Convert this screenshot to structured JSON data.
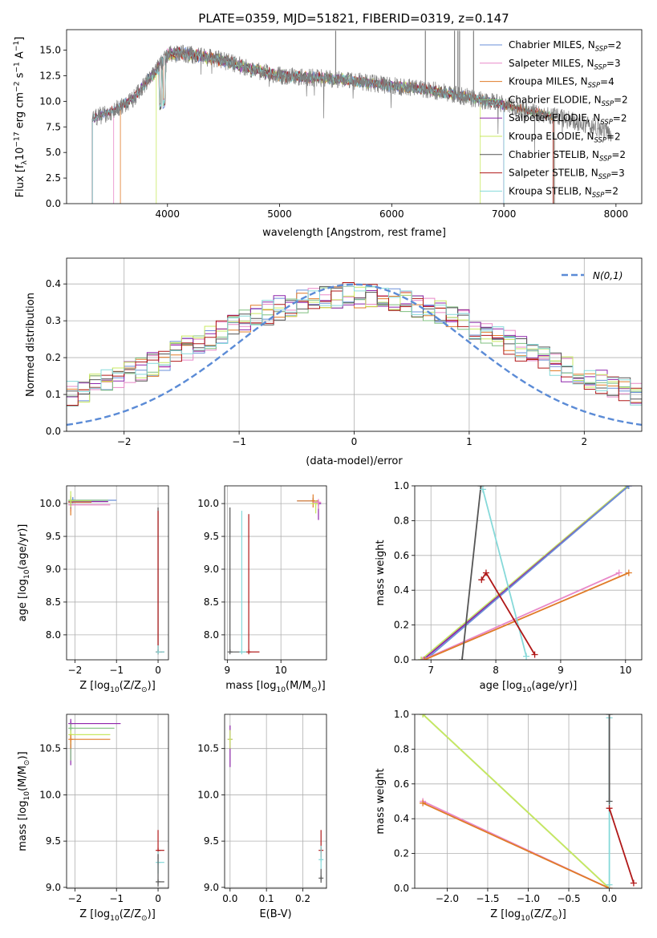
{
  "figure": {
    "title": "PLATE=0359, MJD=51821, FIBERID=0319, z=0.147",
    "colors": {
      "Chabrier MILES": "#6a8fd8",
      "Salpeter MILES": "#e888c8",
      "Kroupa MILES": "#e07b28",
      "Chabrier ELODIE": "#7fbf7f",
      "Salpeter ELODIE": "#8e24aa",
      "Kroupa ELODIE": "#c8e860",
      "Chabrier STELIB": "#555555",
      "Salpeter STELIB": "#b01818",
      "Kroupa STELIB": "#86d9d9"
    }
  },
  "chart_data": [
    {
      "id": "spectrum",
      "type": "line",
      "xlabel": "wavelength [Angstrom, rest frame]",
      "ylabel": "Flux [f",
      "ylabel_sub": "λ",
      "ylabel_rest": "10",
      "ylabel_exp1": "−17",
      "ylabel_mid": " erg cm",
      "ylabel_exp2": "−2",
      "ylabel_mid2": " s",
      "ylabel_exp3": "−1",
      "ylabel_mid3": " A",
      "ylabel_exp4": "−1",
      "ylabel_end": "]",
      "xlim": [
        3100,
        8230
      ],
      "ylim": [
        0,
        17
      ],
      "xticks": [
        "4000",
        "5000",
        "6000",
        "7000",
        "8000"
      ],
      "yticks": [
        "0.0",
        "2.5",
        "5.0",
        "7.5",
        "10.0",
        "12.5",
        "15.0"
      ],
      "legend_position": "right",
      "legend": [
        {
          "name": "Chabrier MILES",
          "nssp": "2"
        },
        {
          "name": "Salpeter MILES",
          "nssp": "3"
        },
        {
          "name": "Kroupa MILES",
          "nssp": "4"
        },
        {
          "name": "Chabrier ELODIE",
          "nssp": "2"
        },
        {
          "name": "Salpeter ELODIE",
          "nssp": "2"
        },
        {
          "name": "Kroupa ELODIE",
          "nssp": "2"
        },
        {
          "name": "Chabrier STELIB",
          "nssp": "2"
        },
        {
          "name": "Salpeter STELIB",
          "nssp": "3"
        },
        {
          "name": "Kroupa STELIB",
          "nssp": "2"
        }
      ],
      "legend_nssp_prefix": "N",
      "legend_nssp_sub": "SSP",
      "observed_series": {
        "color": "#7f7f7f",
        "x": [
          3330,
          3500,
          3700,
          3900,
          4000,
          4100,
          4300,
          4500,
          4700,
          5000,
          5300,
          5600,
          6000,
          6300,
          6600,
          6800,
          7000,
          7200,
          7500,
          7800,
          7960
        ],
        "y": [
          8.3,
          9.0,
          10.3,
          13.0,
          14.5,
          14.7,
          14.4,
          14.0,
          13.3,
          12.5,
          12.3,
          12.1,
          11.5,
          11.2,
          10.6,
          10.1,
          9.7,
          9.1,
          8.4,
          7.5,
          6.8
        ]
      },
      "model_start_x": [
        3330,
        3520,
        3580,
        3330,
        3330,
        3900,
        3330,
        3330,
        3330
      ],
      "model_end_x": [
        7000,
        7000,
        7450,
        7440,
        7000,
        6790,
        7450,
        7440,
        7000
      ]
    },
    {
      "id": "residuals",
      "type": "line",
      "xlabel": "(data-model)/error",
      "ylabel": "Normed distribution",
      "xlim": [
        -2.5,
        2.5
      ],
      "ylim": [
        0,
        0.47
      ],
      "xticks": [
        -2,
        -1,
        0,
        1,
        2
      ],
      "xtick_labels": [
        "−2",
        "−1",
        "0",
        "1",
        "2"
      ],
      "yticks": [
        0,
        0.1,
        0.2,
        0.3,
        0.4
      ],
      "ytick_labels": [
        "0.0",
        "0.1",
        "0.2",
        "0.3",
        "0.4"
      ],
      "gaussian": {
        "label": "N(0,1)",
        "mu": 0,
        "sigma": 1,
        "color": "#5b8bd6"
      },
      "bin_width": 0.1,
      "histogram_bins": 50
    },
    {
      "id": "age-vs-z",
      "type": "scatter",
      "xlabel": "Z [log",
      "xlabel_sub": "10",
      "xlabel_rest": "(Z/Z",
      "xlabel_sun": "⊙",
      "xlabel_end": ")]",
      "ylabel": "age  [log",
      "ylabel_sub": "10",
      "ylabel_rest": "(age/yr)]",
      "xlim": [
        -2.2,
        0.25
      ],
      "ylim": [
        7.62,
        10.27
      ],
      "xticks": [
        -2,
        -1,
        0
      ],
      "xtick_labels": [
        "−2",
        "−1",
        "0"
      ],
      "yticks": [
        8.0,
        8.5,
        9.0,
        9.5,
        10.0
      ],
      "ytick_labels": [
        "8.0",
        "8.5",
        "9.0",
        "9.5",
        "10.0"
      ],
      "points": [
        {
          "model": "Chabrier MILES",
          "x": -2.05,
          "y": 10.05,
          "xerr": [
            0.0,
            1.05
          ],
          "yerr": [
            0.05,
            0.05
          ]
        },
        {
          "model": "Salpeter MILES",
          "x": -2.1,
          "y": 9.98,
          "xerr": [
            0.0,
            0.95
          ],
          "yerr": [
            0.1,
            0.05
          ]
        },
        {
          "model": "Kroupa MILES",
          "x": -2.1,
          "y": 10.02,
          "xerr": [
            0.0,
            0.5
          ],
          "yerr": [
            0.2,
            0.1
          ]
        },
        {
          "model": "Chabrier ELODIE",
          "x": -2.1,
          "y": 10.05,
          "xerr": [
            0.0,
            0.9
          ],
          "yerr": [
            0.1,
            0.05
          ]
        },
        {
          "model": "Salpeter ELODIE",
          "x": -2.1,
          "y": 10.03,
          "xerr": [
            0.0,
            0.9
          ],
          "yerr": [
            0.1,
            0.05
          ]
        },
        {
          "model": "Kroupa ELODIE",
          "x": -2.1,
          "y": 10.04,
          "xerr": [
            0.0,
            0.5
          ],
          "yerr": [
            0.1,
            0.15
          ]
        },
        {
          "model": "Chabrier STELIB",
          "x": 0.0,
          "y": 7.74,
          "xerr": [
            0.0,
            0.15
          ],
          "yerr": [
            0.0,
            2.2
          ]
        },
        {
          "model": "Salpeter STELIB",
          "x": 0.0,
          "y": 7.74,
          "xerr": [
            0.0,
            0.1
          ],
          "yerr": [
            0.0,
            2.15
          ]
        },
        {
          "model": "Kroupa STELIB",
          "x": 0.0,
          "y": 7.74,
          "xerr": [
            0.0,
            0.15
          ],
          "yerr": [
            0.0,
            0.1
          ]
        }
      ]
    },
    {
      "id": "age-vs-mass",
      "type": "scatter",
      "xlabel": "mass [log",
      "xlabel_sub": "10",
      "xlabel_rest": "(M/M",
      "xlabel_sun": "⊙",
      "xlabel_end": ")]",
      "xlim": [
        8.95,
        10.85
      ],
      "ylim": [
        7.62,
        10.27
      ],
      "xticks": [
        9,
        10
      ],
      "xtick_labels": [
        "9",
        "10"
      ],
      "yticks": [
        8.0,
        8.5,
        9.0,
        9.5,
        10.0
      ],
      "ytick_labels": [
        "8.0",
        "8.5",
        "9.0",
        "9.5",
        "10.0"
      ],
      "points": [
        {
          "model": "Chabrier STELIB",
          "x": 9.05,
          "y": 7.74,
          "xerr": [
            0.0,
            0.3
          ],
          "yerr": [
            0.0,
            2.2
          ]
        },
        {
          "model": "Kroupa STELIB",
          "x": 9.27,
          "y": 7.74,
          "xerr": [
            0.0,
            0.1
          ],
          "yerr": [
            0.0,
            2.15
          ]
        },
        {
          "model": "Salpeter STELIB",
          "x": 9.4,
          "y": 7.74,
          "xerr": [
            0.0,
            0.2
          ],
          "yerr": [
            0.0,
            2.1
          ]
        },
        {
          "model": "Chabrier MILES",
          "x": 10.6,
          "y": 10.04,
          "xerr": [
            0.3,
            0.1
          ],
          "yerr": [
            0.05,
            0.05
          ]
        },
        {
          "model": "Kroupa MILES",
          "x": 10.6,
          "y": 10.04,
          "xerr": [
            0.3,
            0.1
          ],
          "yerr": [
            0.1,
            0.1
          ]
        },
        {
          "model": "Salpeter ELODIE",
          "x": 10.7,
          "y": 10.0,
          "xerr": [
            0.1,
            0.05
          ],
          "yerr": [
            0.25,
            0.05
          ]
        },
        {
          "model": "Kroupa ELODIE",
          "x": 10.65,
          "y": 10.0,
          "xerr": [
            0.1,
            0.05
          ],
          "yerr": [
            0.15,
            0.05
          ]
        },
        {
          "model": "Salpeter MILES",
          "x": 10.7,
          "y": 10.02,
          "xerr": [
            0.1,
            0.05
          ],
          "yerr": [
            0.1,
            0.05
          ]
        }
      ]
    },
    {
      "id": "weight-vs-age",
      "type": "line",
      "xlabel": "age  [log",
      "xlabel_sub": "10",
      "xlabel_rest": "(age/yr)]",
      "ylabel": "mass weight",
      "xlim": [
        6.75,
        10.25
      ],
      "ylim": [
        0,
        1
      ],
      "xticks": [
        7,
        8,
        9,
        10
      ],
      "xtick_labels": [
        "7",
        "8",
        "9",
        "10"
      ],
      "yticks": [
        0,
        0.2,
        0.4,
        0.6,
        0.8,
        1.0
      ],
      "ytick_labels": [
        "0.0",
        "0.2",
        "0.4",
        "0.6",
        "0.8",
        "1.0"
      ],
      "series": [
        {
          "model": "Chabrier ELODIE",
          "x": [
            6.85,
            10.03
          ],
          "y": [
            0.0,
            1.0
          ]
        },
        {
          "model": "Kroupa ELODIE",
          "x": [
            6.85,
            10.03
          ],
          "y": [
            0.0,
            1.0
          ]
        },
        {
          "model": "Salpeter ELODIE",
          "x": [
            6.88,
            10.05
          ],
          "y": [
            0.0,
            1.0
          ]
        },
        {
          "model": "Chabrier MILES",
          "x": [
            6.92,
            10.05
          ],
          "y": [
            0.0,
            1.0
          ]
        },
        {
          "model": "Salpeter MILES",
          "x": [
            6.88,
            9.9
          ],
          "y": [
            0.0,
            0.5
          ]
        },
        {
          "model": "Kroupa MILES",
          "x": [
            6.9,
            10.05
          ],
          "y": [
            0.0,
            0.5
          ]
        },
        {
          "model": "Chabrier STELIB",
          "x": [
            7.48,
            7.77
          ],
          "y": [
            0.0,
            1.0
          ]
        },
        {
          "model": "Kroupa STELIB",
          "x": [
            7.8,
            8.47
          ],
          "y": [
            0.98,
            0.02
          ]
        },
        {
          "model": "Salpeter STELIB",
          "x": [
            7.78,
            7.85,
            8.6
          ],
          "y": [
            0.46,
            0.5,
            0.03
          ]
        }
      ]
    },
    {
      "id": "mass-vs-z",
      "type": "scatter",
      "xlabel": "Z [log",
      "xlabel_sub": "10",
      "xlabel_rest": "(Z/Z",
      "xlabel_sun": "⊙",
      "xlabel_end": ")]",
      "ylabel": "mass [log",
      "ylabel_sub": "10",
      "ylabel_rest": "(M/M",
      "ylabel_sun": "⊙",
      "ylabel_end": ")]",
      "xlim": [
        -2.2,
        0.25
      ],
      "ylim": [
        8.99,
        10.87
      ],
      "xticks": [
        -2,
        -1,
        0
      ],
      "xtick_labels": [
        "−2",
        "−1",
        "0"
      ],
      "yticks": [
        9.0,
        9.5,
        10.0,
        10.5
      ],
      "ytick_labels": [
        "9.0",
        "9.5",
        "10.0",
        "10.5"
      ],
      "points": [
        {
          "model": "Salpeter ELODIE",
          "x": -2.1,
          "y": 10.77,
          "xerr": [
            0.0,
            1.2
          ],
          "yerr": [
            0.45,
            0.05
          ]
        },
        {
          "model": "Chabrier ELODIE",
          "x": -2.1,
          "y": 10.72,
          "xerr": [
            0.0,
            1.05
          ],
          "yerr": [
            0.35,
            0.05
          ]
        },
        {
          "model": "Kroupa ELODIE",
          "x": -2.1,
          "y": 10.65,
          "xerr": [
            0.0,
            0.95
          ],
          "yerr": [
            0.1,
            0.05
          ]
        },
        {
          "model": "Kroupa MILES",
          "x": -2.1,
          "y": 10.6,
          "xerr": [
            0.0,
            0.95
          ],
          "yerr": [
            0.1,
            0.05
          ]
        },
        {
          "model": "Salpeter STELIB",
          "x": 0.0,
          "y": 9.4,
          "xerr": [
            0.0,
            0.15
          ],
          "yerr": [
            0.1,
            0.22
          ]
        },
        {
          "model": "Kroupa STELIB",
          "x": 0.0,
          "y": 9.27,
          "xerr": [
            0.0,
            0.15
          ],
          "yerr": [
            0.12,
            0.12
          ]
        },
        {
          "model": "Chabrier STELIB",
          "x": 0.0,
          "y": 9.06,
          "xerr": [
            0.0,
            0.15
          ],
          "yerr": [
            0.05,
            0.3
          ]
        }
      ]
    },
    {
      "id": "mass-vs-ebv",
      "type": "scatter",
      "xlabel": "E(B-V)",
      "xlim": [
        -0.015,
        0.265
      ],
      "ylim": [
        8.99,
        10.87
      ],
      "xticks": [
        0,
        0.1,
        0.2
      ],
      "xtick_labels": [
        "0.0",
        "0.1",
        "0.2"
      ],
      "yticks": [
        9.0,
        9.5,
        10.0,
        10.5
      ],
      "ytick_labels": [
        "9.0",
        "9.5",
        "10.0",
        "10.5"
      ],
      "points": [
        {
          "model": "Salpeter ELODIE",
          "x": 0.0,
          "y": 10.6,
          "xerr": [
            0,
            0
          ],
          "yerr": [
            0.3,
            0.15
          ]
        },
        {
          "model": "Kroupa ELODIE",
          "x": 0.0,
          "y": 10.6,
          "xerr": [
            0,
            0
          ],
          "yerr": [
            0.1,
            0.1
          ]
        },
        {
          "model": "Salpeter STELIB",
          "x": 0.25,
          "y": 9.4,
          "xerr": [
            0,
            0
          ],
          "yerr": [
            0.1,
            0.22
          ]
        },
        {
          "model": "Kroupa STELIB",
          "x": 0.25,
          "y": 9.3,
          "xerr": [
            0,
            0
          ],
          "yerr": [
            0.1,
            0.15
          ]
        },
        {
          "model": "Chabrier STELIB",
          "x": 0.25,
          "y": 9.1,
          "xerr": [
            0,
            0
          ],
          "yerr": [
            0.05,
            0.1
          ]
        }
      ]
    },
    {
      "id": "weight-vs-z",
      "type": "line",
      "xlabel": "Z [log",
      "xlabel_sub": "10",
      "xlabel_rest": "(Z/Z",
      "xlabel_sun": "⊙",
      "xlabel_end": ")]",
      "ylabel": "mass weight",
      "xlim": [
        -2.4,
        0.4
      ],
      "ylim": [
        0,
        1
      ],
      "xticks": [
        -2.0,
        -1.5,
        -1.0,
        -0.5,
        0.0
      ],
      "xtick_labels": [
        "−2.0",
        "−1.5",
        "−1.0",
        "−0.5",
        "0.0"
      ],
      "yticks": [
        0,
        0.2,
        0.4,
        0.6,
        0.8,
        1.0
      ],
      "ytick_labels": [
        "0.0",
        "0.2",
        "0.4",
        "0.6",
        "0.8",
        "1.0"
      ],
      "series": [
        {
          "model": "Chabrier ELODIE",
          "x": [
            -2.3,
            0.0
          ],
          "y": [
            1.0,
            0.0
          ]
        },
        {
          "model": "Kroupa ELODIE",
          "x": [
            -2.3,
            0.0
          ],
          "y": [
            1.0,
            0.0
          ]
        },
        {
          "model": "Salpeter MILES",
          "x": [
            -2.3,
            0.0
          ],
          "y": [
            0.5,
            0.0
          ]
        },
        {
          "model": "Kroupa MILES",
          "x": [
            -2.3,
            0.0
          ],
          "y": [
            0.49,
            0.0
          ]
        },
        {
          "model": "Kroupa STELIB",
          "x": [
            0.0,
            0.0
          ],
          "y": [
            0.98,
            0.02
          ]
        },
        {
          "model": "Chabrier STELIB",
          "x": [
            0.0,
            0.0
          ],
          "y": [
            1.0,
            0.5
          ]
        },
        {
          "model": "Salpeter STELIB",
          "x": [
            0.0,
            0.3
          ],
          "y": [
            0.46,
            0.03
          ]
        }
      ]
    }
  ]
}
